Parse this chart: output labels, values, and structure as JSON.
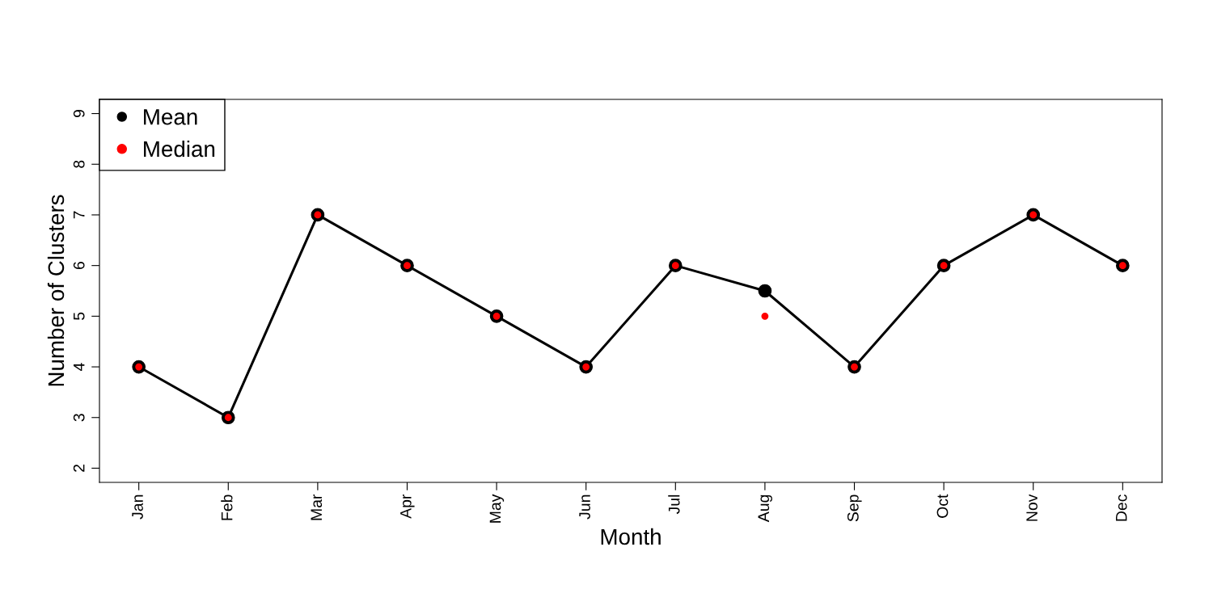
{
  "chart_data": {
    "type": "line",
    "xlabel": "Month",
    "ylabel": "Number of Clusters",
    "categories": [
      "Jan",
      "Feb",
      "Mar",
      "Apr",
      "May",
      "Jun",
      "Jul",
      "Aug",
      "Sep",
      "Oct",
      "Nov",
      "Dec"
    ],
    "series": [
      {
        "name": "Mean",
        "color": "#000000",
        "marker": "circle",
        "values": [
          4,
          3,
          7,
          6,
          5,
          4,
          6,
          5.5,
          4,
          6,
          7,
          6
        ]
      },
      {
        "name": "Median",
        "type": "scatter",
        "color": "#ff0000",
        "marker": "circle",
        "values": [
          4,
          3,
          7,
          6,
          5,
          4,
          6,
          5,
          4,
          6,
          7,
          6
        ]
      }
    ],
    "ylim": [
      1.72,
      9.28
    ],
    "yticks": [
      2,
      3,
      4,
      5,
      6,
      7,
      8,
      9
    ],
    "grid": false,
    "legend": "top left",
    "line_style": "solid"
  }
}
